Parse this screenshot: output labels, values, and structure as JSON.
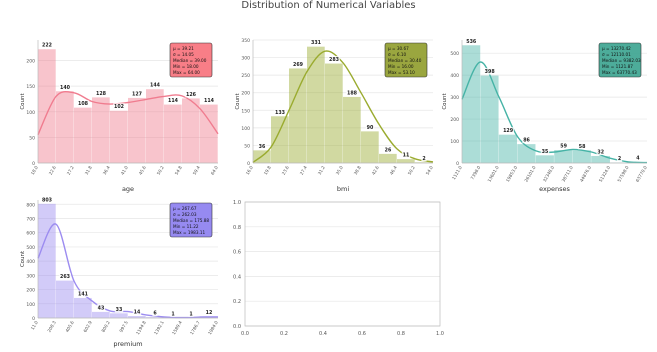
{
  "figure": {
    "title": "Distribution of Numerical Variables"
  },
  "colors": {
    "age": "#f07c8f",
    "bmi": "#9aab2f",
    "expenses": "#46b3a6",
    "premium": "#9c8cf0",
    "grid": "#e6e6e6",
    "axis": "#bbbbbb"
  },
  "chart_data": [
    {
      "type": "bar",
      "title": "",
      "xlabel": "age",
      "ylabel": "Count",
      "kde": true,
      "grid": true,
      "stats_box": "top-right",
      "color": "#f07c8f",
      "box_color": "#f7707a",
      "ylim": [
        0,
        240
      ],
      "yticks": [
        "0",
        "50",
        "100",
        "150",
        "200"
      ],
      "xtick_labels": [
        "18.0",
        "22.6",
        "27.2",
        "31.8",
        "36.4",
        "41.0",
        "45.6",
        "50.2",
        "54.8",
        "59.4",
        "64.0"
      ],
      "bin_edges": [
        18.0,
        22.6,
        27.2,
        31.8,
        36.4,
        41.0,
        45.6,
        50.2,
        54.8,
        59.4,
        64.0
      ],
      "values": [
        222,
        140,
        108,
        128,
        102,
        127,
        144,
        114,
        126,
        114
      ],
      "bar_labels": [
        "222",
        "140",
        "108",
        "128",
        "102",
        "127",
        "144",
        "114",
        "126",
        "114"
      ],
      "kde_y": [
        55,
        130,
        137,
        120,
        115,
        118,
        124,
        130,
        131,
        106,
        57
      ],
      "stats": [
        "μ = 39.21",
        "σ = 14.05",
        "Median = 39.00",
        "Min = 18.00",
        "Max = 64.00"
      ]
    },
    {
      "type": "bar",
      "title": "",
      "xlabel": "bmi",
      "ylabel": "Count",
      "kde": true,
      "grid": true,
      "stats_box": "top-right",
      "color": "#9aab2f",
      "box_color": "#8f9c2a",
      "ylim": [
        0,
        350
      ],
      "yticks": [
        "0",
        "50",
        "100",
        "150",
        "200",
        "250",
        "300",
        "350"
      ],
      "xtick_labels": [
        "16.0",
        "19.8",
        "23.6",
        "27.4",
        "31.2",
        "35.0",
        "38.8",
        "42.6",
        "46.4",
        "50.2",
        "54.0"
      ],
      "bin_edges": [
        16.0,
        19.8,
        23.6,
        27.4,
        31.2,
        35.0,
        38.8,
        42.6,
        46.4,
        50.2,
        54.0
      ],
      "values": [
        36,
        133,
        269,
        331,
        283,
        188,
        90,
        26,
        11,
        2
      ],
      "bar_labels": [
        "36",
        "133",
        "269",
        "331",
        "283",
        "188",
        "90",
        "26",
        "11",
        "2"
      ],
      "kde_y": [
        2,
        45,
        150,
        260,
        318,
        285,
        200,
        110,
        40,
        12,
        3
      ],
      "stats": [
        "μ = 30.67",
        "σ = 6.10",
        "Median = 30.40",
        "Min = 16.00",
        "Max = 53.10"
      ]
    },
    {
      "type": "bar",
      "title": "",
      "xlabel": "expenses",
      "ylabel": "Count",
      "kde": true,
      "grid": true,
      "stats_box": "top-right",
      "color": "#46b3a6",
      "box_color": "#3aa38f",
      "ylim": [
        0,
        560
      ],
      "yticks": [
        "0",
        "100",
        "200",
        "300",
        "400",
        "500"
      ],
      "xtick_labels": [
        "1121.0",
        "7398.0",
        "13601.0",
        "19853.0",
        "26101.0",
        "32348.0",
        "38711.0",
        "44876.0",
        "51324.0",
        "57598.0",
        "63770.0"
      ],
      "bin_edges": [
        1121.0,
        7398.0,
        13601.0,
        19853.0,
        26101.0,
        32348.0,
        38711.0,
        44876.0,
        51324.0,
        57598.0,
        63770.0
      ],
      "values": [
        536,
        398,
        129,
        86,
        35,
        59,
        58,
        32,
        2,
        4
      ],
      "bar_labels": [
        "536",
        "398",
        "129",
        "86",
        "35",
        "59",
        "58",
        "32",
        "2",
        "4"
      ],
      "kde_y": [
        290,
        460,
        300,
        120,
        55,
        50,
        62,
        50,
        22,
        5,
        2
      ],
      "stats": [
        "μ = 13270.42",
        "σ = 12110.01",
        "Median = 9382.03",
        "Min = 1121.87",
        "Max = 63770.43"
      ]
    },
    {
      "type": "bar",
      "title": "",
      "xlabel": "premium",
      "ylabel": "Count",
      "kde": true,
      "grid": true,
      "stats_box": "top-right",
      "color": "#9c8cf0",
      "box_color": "#8b7df0",
      "ylim": [
        0,
        830
      ],
      "yticks": [
        "0",
        "100",
        "200",
        "300",
        "400",
        "500",
        "600",
        "700",
        "800"
      ],
      "xtick_labels": [
        "11.0",
        "208.3",
        "405.6",
        "602.9",
        "800.2",
        "997.5",
        "1194.8",
        "1392.1",
        "1589.4",
        "1786.7",
        "1984.0"
      ],
      "bin_edges": [
        11.0,
        208.3,
        405.6,
        602.9,
        800.2,
        997.5,
        1194.8,
        1392.1,
        1589.4,
        1786.7,
        1984.0
      ],
      "values": [
        803,
        263,
        141,
        43,
        33,
        14,
        6,
        1,
        1,
        12
      ],
      "bar_labels": [
        "803",
        "263",
        "141",
        "43",
        "33",
        "14",
        "6",
        "1",
        "1",
        "12"
      ],
      "kde_y": [
        420,
        660,
        260,
        120,
        50,
        45,
        22,
        8,
        3,
        6,
        8
      ],
      "stats": [
        "μ = 267.67",
        "σ = 262.03",
        "Median = 175.88",
        "Min = 11.22",
        "Max = 1983.11"
      ]
    },
    {
      "type": "scatter",
      "title": "",
      "xlabel": "",
      "ylabel": "",
      "empty": true,
      "grid": true,
      "xlim": [
        0,
        1
      ],
      "ylim": [
        0,
        1
      ],
      "xtick_labels": [
        "0.0",
        "0.2",
        "0.4",
        "0.6",
        "0.8",
        "1.0"
      ],
      "ytick_labels": [
        "0.0",
        "0.2",
        "0.4",
        "0.6",
        "0.8",
        "1.0"
      ]
    }
  ]
}
